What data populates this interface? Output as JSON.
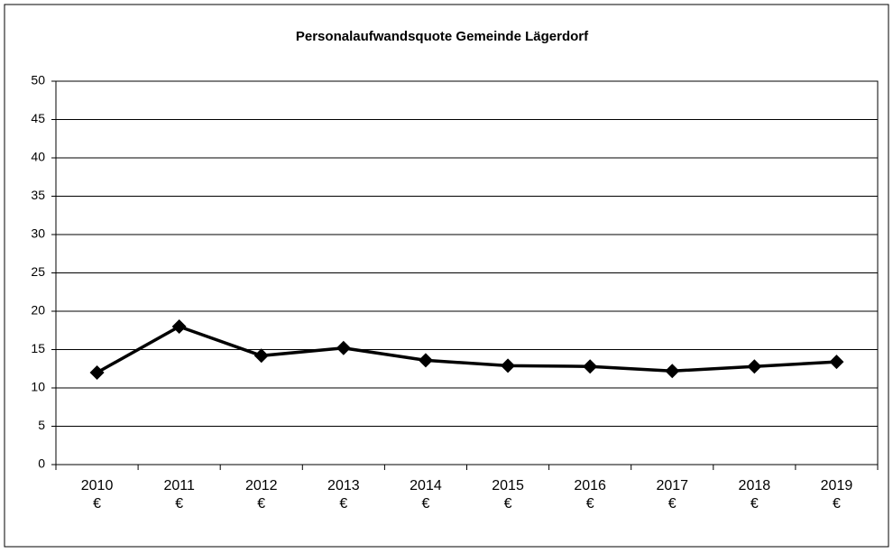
{
  "chart_data": {
    "type": "line",
    "title": "Personalaufwandsquote Gemeinde Lägerdorf",
    "categories": [
      "2010\n€",
      "2011\n€",
      "2012\n€",
      "2013\n€",
      "2014\n€",
      "2015\n€",
      "2016\n€",
      "2017\n€",
      "2018\n€",
      "2019\n€"
    ],
    "values": [
      12,
      18,
      14.2,
      15.2,
      13.6,
      12.9,
      12.8,
      12.2,
      12.8,
      13.4
    ],
    "color": "#000000",
    "ylim": [
      0,
      50
    ],
    "yticks": [
      0,
      5,
      10,
      15,
      20,
      25,
      30,
      35,
      40,
      45,
      50
    ],
    "grid": true
  }
}
